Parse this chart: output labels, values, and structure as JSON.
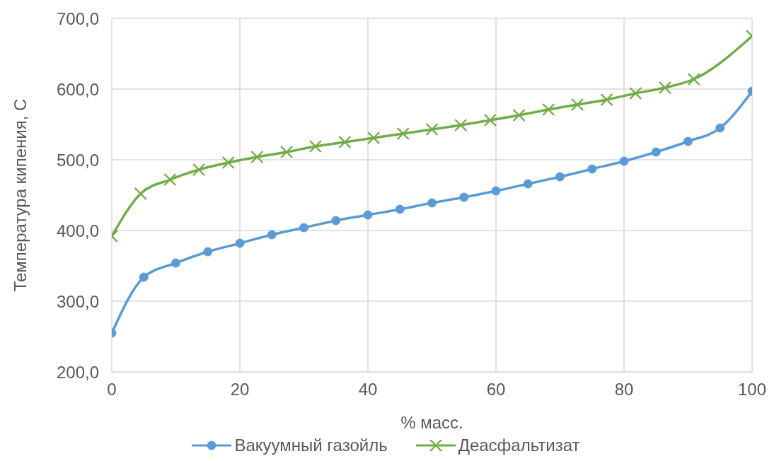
{
  "chart_data": {
    "type": "line",
    "xlabel": "% масс.",
    "ylabel": "Температура кипения, С",
    "xlim": [
      0,
      100
    ],
    "xticks": [
      0,
      20,
      40,
      60,
      80,
      100
    ],
    "ylim": [
      200,
      700
    ],
    "yticks": [
      {
        "value": 200,
        "label": "200,0"
      },
      {
        "value": 300,
        "label": "300,0"
      },
      {
        "value": 400,
        "label": "400,0"
      },
      {
        "value": 500,
        "label": "500,0"
      },
      {
        "value": 600,
        "label": "600,0"
      },
      {
        "value": 700,
        "label": "700,0"
      }
    ],
    "grid": true,
    "legend": "bottom",
    "line_style": "solid",
    "series": [
      {
        "name": "Вакуумный газойль",
        "color": "#5b9bd5",
        "marker": "circle",
        "x": [
          0,
          5,
          10,
          15,
          20,
          25,
          30,
          35,
          40,
          45,
          50,
          55,
          60,
          65,
          70,
          75,
          80,
          85,
          90,
          95,
          100
        ],
        "values": [
          255,
          334,
          354,
          370,
          382,
          394,
          404,
          414,
          422,
          430,
          439,
          447,
          456,
          466,
          476,
          487,
          498,
          511,
          526,
          545,
          597
        ]
      },
      {
        "name": "Деасфальтизат",
        "color": "#70ad47",
        "marker": "cross",
        "x": [
          0,
          4.5,
          9.1,
          13.6,
          18.2,
          22.7,
          27.3,
          31.8,
          36.4,
          40.9,
          45.5,
          50,
          54.5,
          59.1,
          63.6,
          68.2,
          72.7,
          77.3,
          81.8,
          86.4,
          90.9,
          100
        ],
        "values": [
          392,
          452,
          472,
          486,
          496,
          504,
          511,
          519,
          525,
          531,
          537,
          543,
          549,
          556,
          563,
          571,
          578,
          585,
          594,
          602,
          614,
          675
        ]
      }
    ]
  }
}
